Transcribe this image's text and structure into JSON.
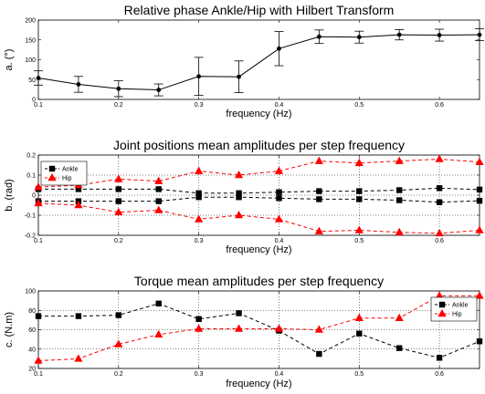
{
  "chart_data": [
    {
      "type": "line",
      "title": "Relative phase Ankle/Hip with Hilbert Transform",
      "xlabel": "frequency (Hz)",
      "ylabel": "a. (°)",
      "xlim": [
        0.1,
        0.65
      ],
      "ylim": [
        0,
        200
      ],
      "xticks": [
        "0.1",
        "0.2",
        "0.3",
        "0.4",
        "0.5",
        "0.6"
      ],
      "yticks": [
        "0",
        "50",
        "100",
        "150",
        "200"
      ],
      "grid": false,
      "x": [
        0.1,
        0.15,
        0.2,
        0.25,
        0.3,
        0.35,
        0.4,
        0.45,
        0.5,
        0.55,
        0.6,
        0.65
      ],
      "series": [
        {
          "values": [
            54,
            38,
            27,
            24,
            58,
            57,
            128,
            158,
            157,
            163,
            162,
            163
          ],
          "error": [
            18,
            20,
            20,
            15,
            48,
            40,
            43,
            17,
            15,
            13,
            15,
            15
          ],
          "color": "#000000",
          "marker": "circle",
          "linestyle": "solid"
        }
      ]
    },
    {
      "type": "line",
      "title": "Joint positions mean amplitudes per step frequency",
      "xlabel": "frequency (Hz)",
      "ylabel": "b. (rad)",
      "xlim": [
        0.1,
        0.65
      ],
      "ylim": [
        -0.2,
        0.2
      ],
      "xticks": [
        "0.1",
        "0.2",
        "0.3",
        "0.4",
        "0.5",
        "0.6"
      ],
      "yticks": [
        "-0.2",
        "-0.1",
        "0",
        "0.1",
        "0.2"
      ],
      "grid": true,
      "legend": "top-left",
      "x": [
        0.1,
        0.15,
        0.2,
        0.25,
        0.3,
        0.35,
        0.4,
        0.45,
        0.5,
        0.55,
        0.6,
        0.65
      ],
      "series": [
        {
          "name": "Ankle",
          "values": [
            0.03,
            0.03,
            0.03,
            0.03,
            0.01,
            0.01,
            0.015,
            0.02,
            0.02,
            0.025,
            0.035,
            0.028
          ],
          "color": "#000000",
          "marker": "square",
          "linestyle": "dashed"
        },
        {
          "name": "Hip",
          "values": [
            0.04,
            0.05,
            0.08,
            0.07,
            0.12,
            0.1,
            0.12,
            0.17,
            0.16,
            0.17,
            0.18,
            0.165
          ],
          "color": "#ff0000",
          "marker": "triangle",
          "linestyle": "dashed"
        },
        {
          "values": [
            -0.03,
            -0.03,
            -0.03,
            -0.03,
            -0.01,
            -0.01,
            -0.015,
            -0.02,
            -0.02,
            -0.025,
            -0.035,
            -0.028
          ],
          "color": "#000000",
          "marker": "square",
          "linestyle": "dashed"
        },
        {
          "values": [
            -0.04,
            -0.05,
            -0.085,
            -0.075,
            -0.12,
            -0.1,
            -0.12,
            -0.18,
            -0.175,
            -0.185,
            -0.19,
            -0.175
          ],
          "color": "#ff0000",
          "marker": "triangle",
          "linestyle": "dashed"
        }
      ]
    },
    {
      "type": "line",
      "title": "Torque mean amplitudes per step frequency",
      "xlabel": "frequency (Hz)",
      "ylabel": "c. (N.m)",
      "xlim": [
        0.1,
        0.65
      ],
      "ylim": [
        20,
        100
      ],
      "xticks": [
        "0.1",
        "0.2",
        "0.3",
        "0.4",
        "0.5",
        "0.6"
      ],
      "yticks": [
        "20",
        "40",
        "60",
        "80",
        "100"
      ],
      "grid": true,
      "legend": "top-right",
      "x": [
        0.1,
        0.15,
        0.2,
        0.25,
        0.3,
        0.35,
        0.4,
        0.45,
        0.5,
        0.55,
        0.6,
        0.65
      ],
      "series": [
        {
          "name": "Ankle",
          "values": [
            74,
            74,
            75,
            87,
            71,
            77,
            59,
            35,
            56,
            41,
            31,
            48
          ],
          "color": "#000000",
          "marker": "square",
          "linestyle": "dashed"
        },
        {
          "name": "Hip",
          "values": [
            28,
            30,
            45,
            55,
            61,
            61,
            61,
            60,
            72,
            72,
            95,
            95
          ],
          "color": "#ff0000",
          "marker": "triangle",
          "linestyle": "dashed"
        }
      ]
    }
  ]
}
